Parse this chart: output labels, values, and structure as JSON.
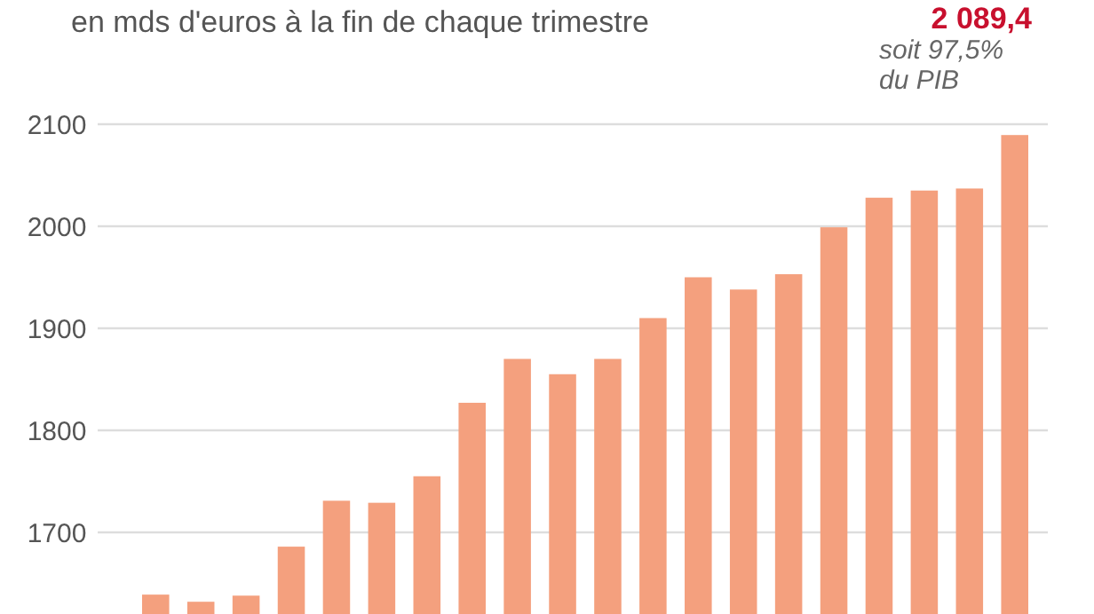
{
  "chart_data": {
    "type": "bar",
    "subtitle": "en mds d'euros à la fin de chaque trimestre",
    "categories": [
      null,
      null,
      null,
      null,
      null,
      null,
      null,
      null,
      null,
      null,
      null,
      null,
      null,
      null,
      null,
      null,
      null,
      null,
      null,
      null
    ],
    "values": [
      1639,
      1632,
      1638,
      1686,
      1731,
      1729,
      1755,
      1827,
      1870,
      1855,
      1870,
      1910,
      1950,
      1938,
      1953,
      1999,
      2028,
      2035,
      2037,
      2089.4
    ],
    "color": "#f4a07e",
    "ylim": [
      1620,
      2100
    ],
    "yticks": [
      1700,
      1800,
      1900,
      2000,
      2100
    ],
    "grid": "y",
    "tick_labels": "y",
    "annotations": [
      "2 089,4",
      "soit 97,5%",
      "du PIB"
    ]
  }
}
